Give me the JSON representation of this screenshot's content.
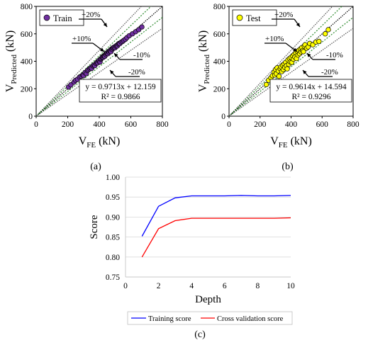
{
  "chart_data": [
    {
      "type": "scatter",
      "panel_label": "(a)",
      "xlabel_main": "V",
      "xlabel_sub": "FE",
      "xlabel_unit": " (kN)",
      "ylabel_main": "V",
      "ylabel_sub": "Predicted",
      "ylabel_unit": " (kN)",
      "xlim": [
        0,
        800
      ],
      "ylim": [
        0,
        800
      ],
      "xticks": [
        "0",
        "200",
        "400",
        "600",
        "800"
      ],
      "yticks": [
        "0",
        "200",
        "400",
        "600",
        "800"
      ],
      "legend": "Train",
      "point_color": "#7030a0",
      "equation": "y = 0.9713x + 12.159",
      "r2": "R² = 0.9866",
      "band_labels": [
        "+20%",
        "+10%",
        "-10%",
        "-20%"
      ],
      "series": [
        {
          "name": "Train",
          "x": [
            205,
            220,
            240,
            250,
            262,
            275,
            285,
            295,
            300,
            310,
            318,
            325,
            330,
            340,
            345,
            352,
            360,
            365,
            372,
            380,
            385,
            390,
            396,
            400,
            405,
            410,
            412,
            418,
            420,
            425,
            428,
            432,
            435,
            440,
            442,
            446,
            450,
            455,
            458,
            462,
            466,
            470,
            474,
            478,
            482,
            486,
            490,
            495,
            500,
            505,
            510,
            515,
            520,
            525,
            530,
            540,
            548,
            555,
            565,
            575,
            590,
            610,
            630,
            650,
            670
          ],
          "y": [
            212,
            228,
            248,
            262,
            268,
            285,
            290,
            300,
            296,
            318,
            310,
            332,
            338,
            345,
            352,
            348,
            366,
            372,
            368,
            385,
            392,
            388,
            402,
            408,
            395,
            415,
            420,
            426,
            432,
            428,
            438,
            440,
            436,
            452,
            448,
            458,
            462,
            455,
            470,
            466,
            476,
            480,
            470,
            490,
            486,
            495,
            500,
            504,
            498,
            510,
            515,
            512,
            525,
            530,
            528,
            540,
            545,
            552,
            560,
            572,
            586,
            600,
            615,
            630,
            650
          ]
        }
      ]
    },
    {
      "type": "scatter",
      "panel_label": "(b)",
      "xlabel_main": "V",
      "xlabel_sub": "FE",
      "xlabel_unit": " (kN)",
      "ylabel_main": "V",
      "ylabel_sub": "Predicted",
      "ylabel_unit": " (kN)",
      "xlim": [
        0,
        800
      ],
      "ylim": [
        0,
        800
      ],
      "xticks": [
        "0",
        "200",
        "400",
        "600",
        "800"
      ],
      "yticks": [
        "0",
        "200",
        "400",
        "600",
        "800"
      ],
      "legend": "Test",
      "point_color": "#ffff00",
      "equation": "y = 0.9614x + 14.594",
      "r2": "R² = 0.9296",
      "band_labels": [
        "+20%",
        "+10%",
        "-10%",
        "-20%"
      ],
      "series": [
        {
          "name": "Test",
          "x": [
            240,
            255,
            270,
            280,
            290,
            295,
            300,
            305,
            310,
            318,
            322,
            330,
            335,
            340,
            345,
            350,
            355,
            360,
            365,
            370,
            375,
            380,
            385,
            390,
            395,
            400,
            405,
            410,
            415,
            420,
            425,
            430,
            435,
            440,
            445,
            450,
            455,
            460,
            465,
            470,
            475,
            480,
            485,
            490,
            500,
            510,
            520,
            540,
            560,
            580,
            620,
            640
          ],
          "y": [
            230,
            262,
            280,
            295,
            320,
            300,
            340,
            310,
            352,
            330,
            290,
            345,
            360,
            325,
            372,
            340,
            380,
            355,
            392,
            368,
            345,
            410,
            378,
            420,
            395,
            428,
            392,
            440,
            415,
            450,
            430,
            462,
            420,
            472,
            445,
            480,
            455,
            490,
            468,
            500,
            478,
            470,
            510,
            520,
            495,
            505,
            530,
            520,
            540,
            545,
            600,
            630
          ]
        }
      ]
    },
    {
      "type": "line",
      "panel_label": "(c)",
      "xlabel": "Depth",
      "ylabel": "Score",
      "xlim": [
        0,
        10
      ],
      "ylim": [
        0.75,
        1.0
      ],
      "xticks": [
        "0",
        "2",
        "4",
        "6",
        "8",
        "10"
      ],
      "yticks": [
        "0.75",
        "0.80",
        "0.85",
        "0.90",
        "0.95",
        "1.00"
      ],
      "x": [
        1,
        2,
        3,
        4,
        5,
        6,
        7,
        8,
        9,
        10
      ],
      "series": [
        {
          "name": "Training score",
          "color": "#0000ff",
          "values": [
            0.852,
            0.927,
            0.948,
            0.953,
            0.953,
            0.953,
            0.954,
            0.953,
            0.953,
            0.954
          ]
        },
        {
          "name": "Cross validation score",
          "color": "#ff0000",
          "values": [
            0.8,
            0.871,
            0.891,
            0.897,
            0.897,
            0.897,
            0.897,
            0.897,
            0.897,
            0.898
          ]
        }
      ]
    }
  ]
}
